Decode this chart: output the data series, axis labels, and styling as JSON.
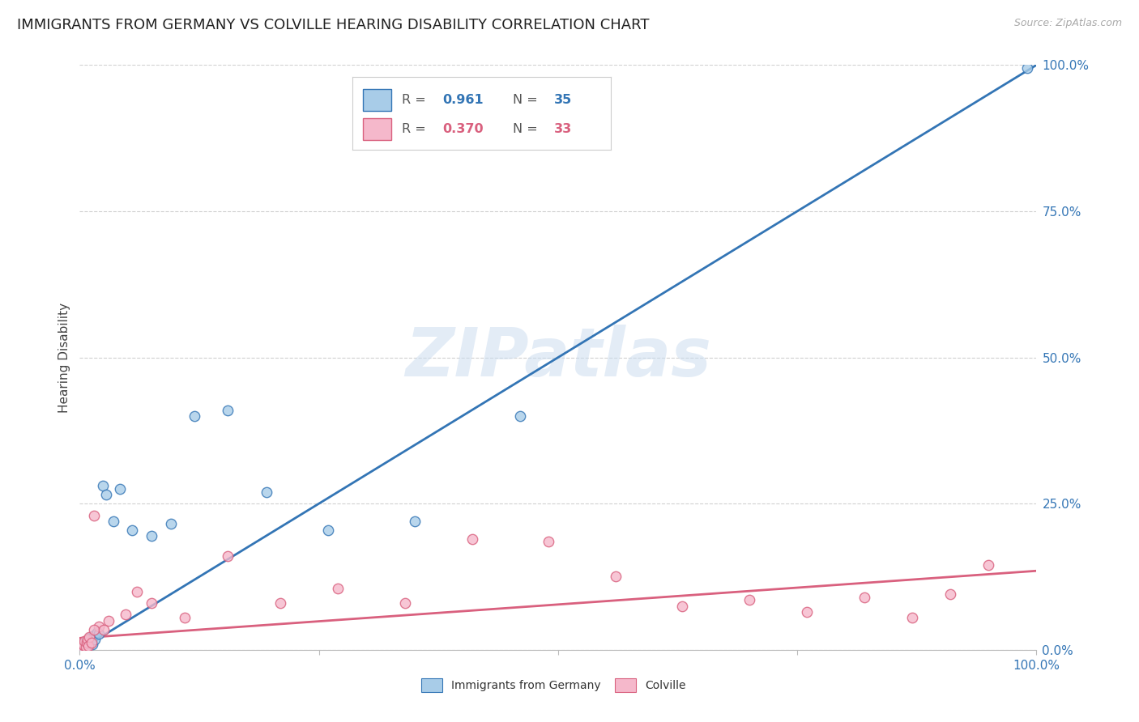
{
  "title": "IMMIGRANTS FROM GERMANY VS COLVILLE HEARING DISABILITY CORRELATION CHART",
  "source": "Source: ZipAtlas.com",
  "ylabel": "Hearing Disability",
  "xlim": [
    0,
    1.0
  ],
  "ylim": [
    0,
    1.0
  ],
  "xtick_vals": [
    0.0,
    0.25,
    0.5,
    0.75,
    1.0
  ],
  "xtick_labels_edge": {
    "0.0": "0.0%",
    "1.0": "100.0%"
  },
  "ytick_vals": [
    0.0,
    0.25,
    0.5,
    0.75,
    1.0
  ],
  "ytick_labels_right": [
    "0.0%",
    "25.0%",
    "50.0%",
    "75.0%",
    "100.0%"
  ],
  "blue_R": "0.961",
  "blue_N": "35",
  "pink_R": "0.370",
  "pink_N": "33",
  "blue_scatter_x": [
    0.002,
    0.003,
    0.004,
    0.005,
    0.005,
    0.006,
    0.006,
    0.007,
    0.007,
    0.008,
    0.008,
    0.009,
    0.01,
    0.011,
    0.012,
    0.013,
    0.014,
    0.015,
    0.016,
    0.018,
    0.02,
    0.024,
    0.028,
    0.035,
    0.042,
    0.055,
    0.075,
    0.095,
    0.12,
    0.155,
    0.195,
    0.26,
    0.35,
    0.46,
    0.99
  ],
  "blue_scatter_y": [
    0.003,
    0.005,
    0.004,
    0.008,
    0.012,
    0.006,
    0.01,
    0.008,
    0.015,
    0.01,
    0.007,
    0.018,
    0.012,
    0.02,
    0.015,
    0.009,
    0.022,
    0.025,
    0.018,
    0.03,
    0.028,
    0.28,
    0.265,
    0.22,
    0.275,
    0.205,
    0.195,
    0.215,
    0.4,
    0.41,
    0.27,
    0.205,
    0.22,
    0.4,
    0.995
  ],
  "pink_scatter_x": [
    0.002,
    0.003,
    0.004,
    0.005,
    0.006,
    0.007,
    0.008,
    0.009,
    0.01,
    0.012,
    0.015,
    0.02,
    0.03,
    0.048,
    0.075,
    0.11,
    0.155,
    0.21,
    0.27,
    0.34,
    0.41,
    0.49,
    0.56,
    0.63,
    0.7,
    0.76,
    0.82,
    0.87,
    0.91,
    0.95,
    0.015,
    0.025,
    0.06
  ],
  "pink_scatter_y": [
    0.005,
    0.01,
    0.008,
    0.015,
    0.005,
    0.012,
    0.018,
    0.007,
    0.022,
    0.012,
    0.23,
    0.04,
    0.05,
    0.06,
    0.08,
    0.055,
    0.16,
    0.08,
    0.105,
    0.08,
    0.19,
    0.185,
    0.125,
    0.075,
    0.085,
    0.065,
    0.09,
    0.055,
    0.095,
    0.145,
    0.035,
    0.035,
    0.1
  ],
  "blue_line_x": [
    0.0,
    1.0
  ],
  "blue_line_y": [
    0.0,
    1.0
  ],
  "pink_line_x": [
    0.0,
    1.0
  ],
  "pink_line_y": [
    0.02,
    0.135
  ],
  "blue_color": "#a8cce8",
  "blue_line_color": "#3375b5",
  "pink_color": "#f5b8cb",
  "pink_line_color": "#d9607e",
  "watermark": "ZIPatlas",
  "background_color": "#ffffff",
  "grid_color": "#d0d0d0",
  "title_fontsize": 13,
  "axis_label_fontsize": 11,
  "tick_fontsize": 11,
  "scatter_size": 80,
  "legend_fontsize": 12
}
